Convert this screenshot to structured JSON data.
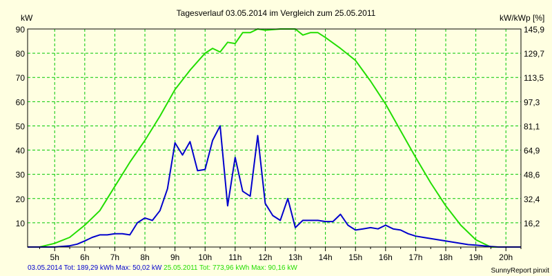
{
  "chart_data": {
    "type": "line",
    "title": "Tagesverlauf 03.05.2014 im Vergleich zum 25.05.2011",
    "ylabel_left": "kW",
    "ylabel_right": "kW/kWp [%]",
    "ylim_left": [
      0,
      90
    ],
    "yticks_left": [
      "90",
      "80",
      "70",
      "60",
      "50",
      "40",
      "30",
      "20",
      "10"
    ],
    "yticks_right": [
      "145,9",
      "129,7",
      "113,5",
      "97,3",
      "81,1",
      "64,9",
      "48,6",
      "32,4",
      "16,2"
    ],
    "xlim": [
      4.1,
      20.5
    ],
    "xticks": [
      "5h",
      "6h",
      "7h",
      "8h",
      "9h",
      "10h",
      "11h",
      "12h",
      "13h",
      "14h",
      "15h",
      "16h",
      "17h",
      "18h",
      "19h",
      "20h"
    ],
    "grid": true,
    "colors": {
      "background": "#FFFFE1",
      "grid": "#00C800",
      "axis": "#000000"
    },
    "series": [
      {
        "color": "#0000CC",
        "x": [
          4.1,
          5.0,
          5.5,
          5.75,
          6.0,
          6.25,
          6.5,
          6.75,
          7.0,
          7.25,
          7.5,
          7.75,
          8.0,
          8.25,
          8.5,
          8.75,
          9.0,
          9.25,
          9.5,
          9.75,
          10.0,
          10.25,
          10.5,
          10.75,
          11.0,
          11.25,
          11.5,
          11.75,
          12.0,
          12.25,
          12.5,
          12.75,
          13.0,
          13.25,
          13.5,
          13.75,
          14.0,
          14.25,
          14.5,
          14.75,
          15.0,
          15.25,
          15.5,
          15.75,
          16.0,
          16.25,
          16.5,
          16.75,
          17.0,
          17.25,
          17.5,
          17.75,
          18.0,
          18.25,
          18.5,
          18.75,
          19.0,
          19.25,
          19.5,
          19.75,
          20.0,
          20.5
        ],
        "y": [
          0,
          0,
          0.5,
          1.2,
          2.5,
          4,
          5,
          5,
          5.5,
          5.5,
          5,
          10,
          12,
          11,
          15,
          24,
          43,
          38,
          43.5,
          31.5,
          32,
          44,
          50,
          17,
          37,
          23,
          21,
          46,
          18,
          13,
          11,
          20,
          8,
          11,
          11,
          11,
          10.5,
          10.5,
          13.5,
          9,
          7,
          7.5,
          8,
          7.5,
          9,
          7.5,
          7,
          5.5,
          4.5,
          4,
          3.5,
          3,
          2.5,
          2,
          1.5,
          1,
          0.8,
          0.5,
          0.2,
          0,
          0,
          0
        ]
      },
      {
        "color": "#22DD00",
        "x": [
          4.1,
          4.5,
          5.0,
          5.5,
          6.0,
          6.5,
          7.0,
          7.5,
          8.0,
          8.5,
          9.0,
          9.5,
          10.0,
          10.25,
          10.5,
          10.75,
          11.0,
          11.25,
          11.5,
          11.75,
          12.0,
          12.5,
          13.0,
          13.25,
          13.5,
          13.75,
          14.0,
          14.5,
          15.0,
          15.5,
          16.0,
          16.5,
          17.0,
          17.5,
          18.0,
          18.5,
          19.0,
          19.5,
          20.0,
          20.5
        ],
        "y": [
          0,
          0,
          1.5,
          4,
          9,
          15,
          25,
          35,
          44,
          54,
          65,
          73,
          80,
          82,
          80.5,
          84.5,
          84,
          88.5,
          88.5,
          90,
          89.5,
          90,
          90,
          87.5,
          88.5,
          88.5,
          86.5,
          82,
          77,
          68.5,
          59,
          48,
          37,
          26.5,
          17,
          9,
          3,
          0,
          0,
          0
        ]
      }
    ]
  },
  "footer": {
    "blue_text": "03.05.2014 Tot: 189,29 kWh Max: 50,02 kW",
    "green_text": "25.05.2011 Tot: 773,96 kWh Max: 90,16 kW",
    "credit": "SunnyReport pinxit"
  }
}
